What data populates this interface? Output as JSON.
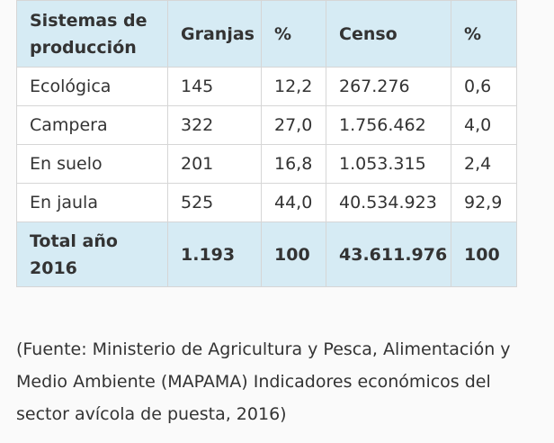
{
  "table": {
    "headers": [
      "Sistemas de producción",
      "Granjas",
      "%",
      "Censo",
      "%"
    ],
    "rows": [
      [
        "Ecológica",
        "145",
        "12,2",
        "267.276",
        "0,6"
      ],
      [
        "Campera",
        "322",
        "27,0",
        "1.756.462",
        "4,0"
      ],
      [
        "En suelo",
        "201",
        "16,8",
        "1.053.315",
        "2,4"
      ],
      [
        "En jaula",
        "525",
        "44,0",
        "40.534.923",
        "92,9"
      ]
    ],
    "total": [
      "Total año 2016",
      "1.193",
      "100",
      "43.611.976",
      "100"
    ]
  },
  "source_note": "(Fuente: Ministerio de Agricultura y Pesca, Alimentación y Medio Ambiente (MAPAMA) Indicadores económicos del sector avícola de puesta, 2016)",
  "colors": {
    "header_bg": "#d6ebf4",
    "row_bg": "#ffffff",
    "page_bg": "#fafafa",
    "border": "#d6d6d6",
    "text": "#333333"
  }
}
